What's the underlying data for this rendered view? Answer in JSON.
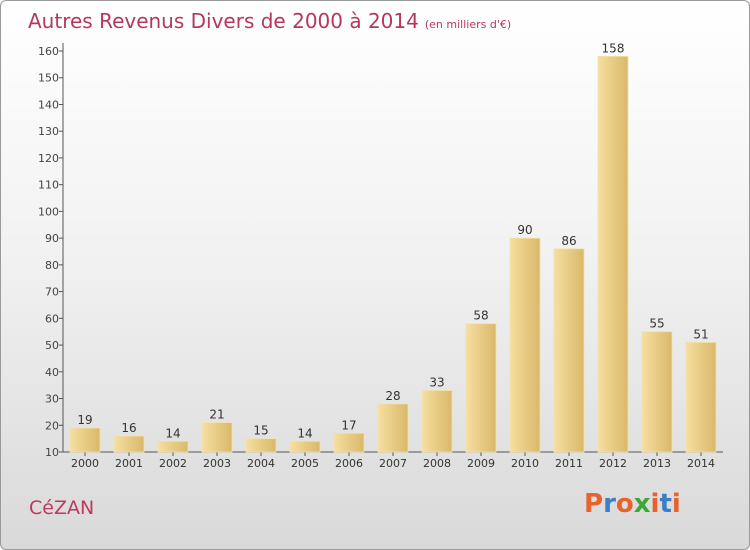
{
  "header": {
    "title": "Autres Revenus Divers de 2000 à 2014",
    "subtitle": "(en milliers d'€)"
  },
  "footer": {
    "commune": "CéZAN",
    "logo_text": "Proxiti",
    "logo_colors": [
      "#e8622c",
      "#3a7fc7",
      "#e8622c",
      "#3aa935",
      "#e8622c",
      "#3a7fc7",
      "#e8622c"
    ]
  },
  "colors": {
    "bar_light": "#f6dfa0",
    "bar_dark": "#d9b86a",
    "title": "#b5385a",
    "axis": "#555555"
  },
  "chart_data": {
    "type": "bar",
    "title": "Autres Revenus Divers de 2000 à 2014",
    "subtitle": "(en milliers d'€)",
    "categories": [
      "2000",
      "2001",
      "2002",
      "2003",
      "2004",
      "2005",
      "2006",
      "2007",
      "2008",
      "2009",
      "2010",
      "2011",
      "2012",
      "2013",
      "2014"
    ],
    "values": [
      19,
      16,
      14,
      21,
      15,
      14,
      17,
      28,
      33,
      58,
      90,
      86,
      158,
      55,
      51
    ],
    "ylim": [
      10,
      160
    ],
    "yticks": [
      10,
      20,
      30,
      40,
      50,
      60,
      70,
      80,
      90,
      100,
      110,
      120,
      130,
      140,
      150,
      160
    ],
    "grid": false,
    "xlabel": "",
    "ylabel": ""
  }
}
